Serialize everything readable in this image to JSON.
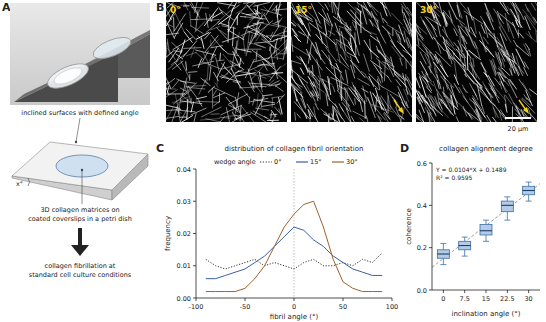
{
  "panels": {
    "A": {
      "label": "A",
      "caption_top": "inclined surfaces with defined angle",
      "angle_label": "x°",
      "caption_middle": [
        "3D collagen matrices on",
        "coated coverslips in a petri dish"
      ],
      "caption_bottom": [
        "collagen fibrillation at",
        "standard cell culture conditions"
      ]
    },
    "B": {
      "label": "B",
      "images": [
        "0°",
        "15°",
        "30°"
      ],
      "scale_bar": "20 µm"
    }
  },
  "chart_data": [
    {
      "type": "line",
      "panel_label": "C",
      "title": "distribution of collagen fibril orientation",
      "x_label": "fibril angle (°)",
      "y_label": "frequency",
      "legend_title": "wedge angle",
      "legend": "top",
      "x": [
        -90,
        -80,
        -70,
        -60,
        -50,
        -40,
        -30,
        -20,
        -10,
        0,
        10,
        20,
        30,
        40,
        50,
        60,
        70,
        80,
        90
      ],
      "series": [
        {
          "name": "0°",
          "color": "#333333",
          "line_style": "dotted",
          "values": [
            0.012,
            0.01,
            0.009,
            0.01,
            0.011,
            0.012,
            0.01,
            0.011,
            0.01,
            0.009,
            0.011,
            0.012,
            0.01,
            0.01,
            0.011,
            0.01,
            0.012,
            0.011,
            0.014
          ]
        },
        {
          "name": "15°",
          "color": "#3a5fa8",
          "line_style": "solid",
          "values": [
            0.006,
            0.006,
            0.007,
            0.008,
            0.009,
            0.011,
            0.013,
            0.016,
            0.019,
            0.022,
            0.021,
            0.018,
            0.016,
            0.013,
            0.011,
            0.009,
            0.008,
            0.007,
            0.007
          ]
        },
        {
          "name": "30°",
          "color": "#a0622d",
          "line_style": "solid",
          "values": [
            0.002,
            0.002,
            0.002,
            0.002,
            0.003,
            0.006,
            0.01,
            0.016,
            0.022,
            0.026,
            0.029,
            0.03,
            0.022,
            0.012,
            0.005,
            0.003,
            0.002,
            0.002,
            0.002
          ]
        }
      ],
      "vline": 0,
      "xlim": [
        -100,
        100
      ],
      "xticks": [
        -100,
        -50,
        0,
        50,
        100
      ],
      "ylim": [
        0,
        0.04
      ],
      "yticks": [
        {
          "value": 0,
          "label": "0.00"
        },
        {
          "value": 0.01,
          "label": "0.01"
        },
        {
          "value": 0.02,
          "label": "0.02"
        },
        {
          "value": 0.03,
          "label": "0.03"
        },
        {
          "value": 0.04,
          "label": "0.04"
        }
      ],
      "grid": false
    },
    {
      "type": "box",
      "panel_label": "D",
      "title": "collagen alignment degree",
      "x_label": "inclination angle (°)",
      "y_label": "coherence",
      "color": "#3a6ea5",
      "x": [
        0,
        7.5,
        15,
        22.5,
        30
      ],
      "min": [
        0.12,
        0.16,
        0.23,
        0.33,
        0.42
      ],
      "q1": [
        0.15,
        0.19,
        0.26,
        0.37,
        0.45
      ],
      "median": [
        0.17,
        0.21,
        0.28,
        0.4,
        0.47
      ],
      "q3": [
        0.19,
        0.23,
        0.31,
        0.42,
        0.49
      ],
      "max": [
        0.22,
        0.25,
        0.33,
        0.44,
        0.51
      ],
      "fit": {
        "slope": 0.0104,
        "intercept": 0.1489
      },
      "annotations": [
        "Y = 0.0104*X + 0.1489",
        "R² = 0.9595"
      ],
      "xlim": [
        -4,
        34
      ],
      "xticks": [
        0,
        7.5,
        15,
        22.5,
        30
      ],
      "ylim": [
        0,
        0.6
      ],
      "yticks": [
        {
          "value": 0,
          "label": "0.0"
        },
        0.2,
        0.4,
        0.6
      ],
      "grid": false
    }
  ]
}
